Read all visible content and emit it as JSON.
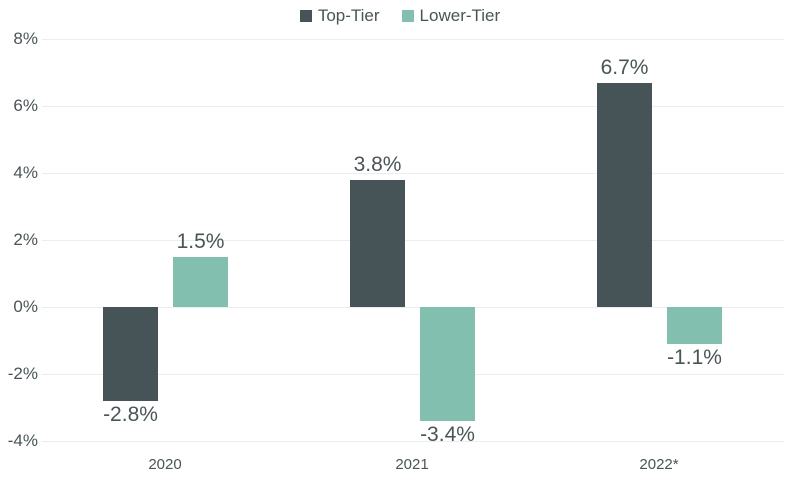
{
  "chart_data": {
    "type": "bar",
    "title": "",
    "xlabel": "",
    "ylabel": "",
    "categories": [
      "2020",
      "2021",
      "2022*"
    ],
    "series": [
      {
        "name": "Top-Tier",
        "color": "#475457",
        "values": [
          -2.8,
          3.8,
          6.7
        ],
        "labels": [
          "-2.8%",
          "3.8%",
          "6.7%"
        ]
      },
      {
        "name": "Lower-Tier",
        "color": "#82bfae",
        "values": [
          1.5,
          -3.4,
          -1.1
        ],
        "labels": [
          "1.5%",
          "-3.4%",
          "-1.1%"
        ]
      }
    ],
    "ylim": [
      -4,
      8
    ],
    "yticks": [
      "8%",
      "6%",
      "4%",
      "2%",
      "0%",
      "-2%",
      "-4%"
    ],
    "grid": true,
    "legend_position": "top"
  },
  "legend": [
    {
      "label": "Top-Tier",
      "color": "#475457"
    },
    {
      "label": "Lower-Tier",
      "color": "#82bfae"
    }
  ]
}
